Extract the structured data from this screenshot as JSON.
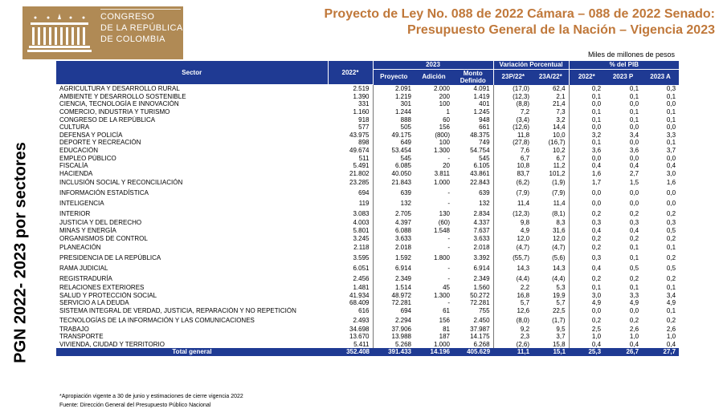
{
  "logo": {
    "name_lines": [
      "CONGRESO",
      "DE LA REPÚBLICA",
      "DE COLOMBIA"
    ]
  },
  "title": {
    "line1": "Proyecto de Ley No. 088 de 2022 Cámara – 088 de 2022 Senado:",
    "line2": "Presupuesto General de la Nación – Vigencia 2023"
  },
  "side_title": "PGN 2022- 2023 por sectores",
  "units": "Miles de millones de pesos",
  "table": {
    "h_sector": "Sector",
    "h_2022": "2022*",
    "h_2023": "2023",
    "h_proyecto": "Proyecto",
    "h_adicion": "Adición",
    "h_monto": "Monto Definido",
    "h_var": "Variación Porcentual",
    "h_var1": "23P/22*",
    "h_var2": "23A/22*",
    "h_pib": "% del PIB",
    "h_pib1": "2022*",
    "h_pib2": "2023 P",
    "h_pib3": "2023 A",
    "rows": [
      {
        "sector": "AGRICULTURA Y DESARROLLO RURAL",
        "v2022": "2.519",
        "proyecto": "2.091",
        "adicion": "2.000",
        "monto": "4.091",
        "var1": "(17,0)",
        "var2": "62,4",
        "pib1": "0,2",
        "pib2": "0,1",
        "pib3": "0,3"
      },
      {
        "sector": "AMBIENTE Y DESARROLLO SOSTENIBLE",
        "v2022": "1.390",
        "proyecto": "1.219",
        "adicion": "200",
        "monto": "1.419",
        "var1": "(12,3)",
        "var2": "2,1",
        "pib1": "0,1",
        "pib2": "0,1",
        "pib3": "0,1"
      },
      {
        "sector": "CIENCIA, TECNOLOGÍA E INNOVACIÓN",
        "v2022": "331",
        "proyecto": "301",
        "adicion": "100",
        "monto": "401",
        "var1": "(8,8)",
        "var2": "21,4",
        "pib1": "0,0",
        "pib2": "0,0",
        "pib3": "0,0"
      },
      {
        "sector": "COMERCIO, INDUSTRIA Y TURISMO",
        "v2022": "1.160",
        "proyecto": "1.244",
        "adicion": "1",
        "monto": "1.245",
        "var1": "7,2",
        "var2": "7,3",
        "pib1": "0,1",
        "pib2": "0,1",
        "pib3": "0,1"
      },
      {
        "sector": "CONGRESO DE LA REPÚBLICA",
        "v2022": "918",
        "proyecto": "888",
        "adicion": "60",
        "monto": "948",
        "var1": "(3,4)",
        "var2": "3,2",
        "pib1": "0,1",
        "pib2": "0,1",
        "pib3": "0,1"
      },
      {
        "sector": "CULTURA",
        "v2022": "577",
        "proyecto": "505",
        "adicion": "156",
        "monto": "661",
        "var1": "(12,6)",
        "var2": "14,4",
        "pib1": "0,0",
        "pib2": "0,0",
        "pib3": "0,0"
      },
      {
        "sector": "DEFENSA Y POLICÍA",
        "v2022": "43.975",
        "proyecto": "49.175",
        "adicion": "(800)",
        "monto": "48.375",
        "var1": "11,8",
        "var2": "10,0",
        "pib1": "3,2",
        "pib2": "3,4",
        "pib3": "3,3"
      },
      {
        "sector": "DEPORTE Y RECREACIÓN",
        "v2022": "898",
        "proyecto": "649",
        "adicion": "100",
        "monto": "749",
        "var1": "(27,8)",
        "var2": "(16,7)",
        "pib1": "0,1",
        "pib2": "0,0",
        "pib3": "0,1"
      },
      {
        "sector": "EDUCACIÓN",
        "v2022": "49.674",
        "proyecto": "53.454",
        "adicion": "1.300",
        "monto": "54.754",
        "var1": "7,6",
        "var2": "10,2",
        "pib1": "3,6",
        "pib2": "3,6",
        "pib3": "3,7"
      },
      {
        "sector": "EMPLEO PÚBLICO",
        "v2022": "511",
        "proyecto": "545",
        "adicion": "-",
        "monto": "545",
        "var1": "6,7",
        "var2": "6,7",
        "pib1": "0,0",
        "pib2": "0,0",
        "pib3": "0,0"
      },
      {
        "sector": "FISCALÍA",
        "v2022": "5.491",
        "proyecto": "6.085",
        "adicion": "20",
        "monto": "6.105",
        "var1": "10,8",
        "var2": "11,2",
        "pib1": "0,4",
        "pib2": "0,4",
        "pib3": "0,4"
      },
      {
        "sector": "HACIENDA",
        "v2022": "21.802",
        "proyecto": "40.050",
        "adicion": "3.811",
        "monto": "43.861",
        "var1": "83,7",
        "var2": "101,2",
        "pib1": "1,6",
        "pib2": "2,7",
        "pib3": "3,0"
      },
      {
        "sector": "INCLUSIÓN SOCIAL Y RECONCILIACIÓN",
        "v2022": "23.285",
        "proyecto": "21.843",
        "adicion": "1.000",
        "monto": "22.843",
        "var1": "(6,2)",
        "var2": "(1,9)",
        "pib1": "1,7",
        "pib2": "1,5",
        "pib3": "1,6",
        "tall": true
      },
      {
        "sector": "INFORMACIÓN ESTADÍSTICA",
        "v2022": "694",
        "proyecto": "639",
        "adicion": "-",
        "monto": "639",
        "var1": "(7,9)",
        "var2": "(7,9)",
        "pib1": "0,0",
        "pib2": "0,0",
        "pib3": "0,0",
        "tall": true
      },
      {
        "sector": "INTELIGENCIA",
        "v2022": "119",
        "proyecto": "132",
        "adicion": "-",
        "monto": "132",
        "var1": "11,4",
        "var2": "11,4",
        "pib1": "0,0",
        "pib2": "0,0",
        "pib3": "0,0",
        "tall": true
      },
      {
        "sector": "INTERIOR",
        "v2022": "3.083",
        "proyecto": "2.705",
        "adicion": "130",
        "monto": "2.834",
        "var1": "(12,3)",
        "var2": "(8,1)",
        "pib1": "0,2",
        "pib2": "0,2",
        "pib3": "0,2",
        "tall": true
      },
      {
        "sector": "JUSTICIA Y DEL DERECHO",
        "v2022": "4.003",
        "proyecto": "4.397",
        "adicion": "(60)",
        "monto": "4.337",
        "var1": "9,8",
        "var2": "8,3",
        "pib1": "0,3",
        "pib2": "0,3",
        "pib3": "0,3"
      },
      {
        "sector": "MINAS Y ENERGÍA",
        "v2022": "5.801",
        "proyecto": "6.088",
        "adicion": "1.548",
        "monto": "7.637",
        "var1": "4,9",
        "var2": "31,6",
        "pib1": "0,4",
        "pib2": "0,4",
        "pib3": "0,5"
      },
      {
        "sector": "ORGANISMOS DE CONTROL",
        "v2022": "3.245",
        "proyecto": "3.633",
        "adicion": "-",
        "monto": "3.633",
        "var1": "12,0",
        "var2": "12,0",
        "pib1": "0,2",
        "pib2": "0,2",
        "pib3": "0,2"
      },
      {
        "sector": "PLANEACIÓN",
        "v2022": "2.118",
        "proyecto": "2.018",
        "adicion": "-",
        "monto": "2.018",
        "var1": "(4,7)",
        "var2": "(4,7)",
        "pib1": "0,2",
        "pib2": "0,1",
        "pib3": "0,1",
        "tall": true
      },
      {
        "sector": "PRESIDENCIA DE LA REPÚBLICA",
        "v2022": "3.595",
        "proyecto": "1.592",
        "adicion": "1.800",
        "monto": "3.392",
        "var1": "(55,7)",
        "var2": "(5,6)",
        "pib1": "0,3",
        "pib2": "0,1",
        "pib3": "0,2",
        "tall": true
      },
      {
        "sector": "RAMA JUDICIAL",
        "v2022": "6.051",
        "proyecto": "6.914",
        "adicion": "-",
        "monto": "6.914",
        "var1": "14,3",
        "var2": "14,3",
        "pib1": "0,4",
        "pib2": "0,5",
        "pib3": "0,5",
        "tall": true
      },
      {
        "sector": "REGISTRADURÍA",
        "v2022": "2.456",
        "proyecto": "2.349",
        "adicion": "-",
        "monto": "2.349",
        "var1": "(4,4)",
        "var2": "(4,4)",
        "pib1": "0,2",
        "pib2": "0,2",
        "pib3": "0,2",
        "tall": true
      },
      {
        "sector": "RELACIONES EXTERIORES",
        "v2022": "1.481",
        "proyecto": "1.514",
        "adicion": "45",
        "monto": "1.560",
        "var1": "2,2",
        "var2": "5,3",
        "pib1": "0,1",
        "pib2": "0,1",
        "pib3": "0,1"
      },
      {
        "sector": "SALUD Y PROTECCIÓN SOCIAL",
        "v2022": "41.934",
        "proyecto": "48.972",
        "adicion": "1.300",
        "monto": "50.272",
        "var1": "16,8",
        "var2": "19,9",
        "pib1": "3,0",
        "pib2": "3,3",
        "pib3": "3,4"
      },
      {
        "sector": "SERVICIO A LA DEUDA",
        "v2022": "68.409",
        "proyecto": "72.281",
        "adicion": "-",
        "monto": "72.281",
        "var1": "5,7",
        "var2": "5,7",
        "pib1": "4,9",
        "pib2": "4,9",
        "pib3": "4,9"
      },
      {
        "sector": "SISTEMA INTEGRAL DE VERDAD, JUSTICIA, REPARACIÓN Y NO REPETICIÓN",
        "v2022": "616",
        "proyecto": "694",
        "adicion": "61",
        "monto": "755",
        "var1": "12,6",
        "var2": "22,5",
        "pib1": "0,0",
        "pib2": "0,0",
        "pib3": "0,1"
      },
      {
        "sector": "TECNOLOGÍAS DE LA INFORMACIÓN Y LAS COMUNICACIONES",
        "v2022": "2.493",
        "proyecto": "2.294",
        "adicion": "156",
        "monto": "2.450",
        "var1": "(8,0)",
        "var2": "(1,7)",
        "pib1": "0,2",
        "pib2": "0,2",
        "pib3": "0,2",
        "tall": true
      },
      {
        "sector": "TRABAJO",
        "v2022": "34.698",
        "proyecto": "37.906",
        "adicion": "81",
        "monto": "37.987",
        "var1": "9,2",
        "var2": "9,5",
        "pib1": "2,5",
        "pib2": "2,6",
        "pib3": "2,6"
      },
      {
        "sector": "TRANSPORTE",
        "v2022": "13.670",
        "proyecto": "13.988",
        "adicion": "187",
        "monto": "14.175",
        "var1": "2,3",
        "var2": "3,7",
        "pib1": "1,0",
        "pib2": "1,0",
        "pib3": "1,0"
      },
      {
        "sector": "VIVIENDA, CIUDAD Y TERRITORIO",
        "v2022": "5.411",
        "proyecto": "5.268",
        "adicion": "1.000",
        "monto": "6.268",
        "var1": "(2,6)",
        "var2": "15,8",
        "pib1": "0,4",
        "pib2": "0,4",
        "pib3": "0,4"
      }
    ],
    "total": {
      "label": "Total general",
      "v2022": "352.408",
      "proyecto": "391.433",
      "adicion": "14.196",
      "monto": "405.629",
      "var1": "11,1",
      "var2": "15,1",
      "pib1": "25,3",
      "pib2": "26,7",
      "pib3": "27,7"
    }
  },
  "notes": [
    "*Apropiación vigente a 30 de junio y estimaciones de cierre vigencia 2022",
    "Fuente: Dirección General del Presupuesto Público Nacional"
  ],
  "colors": {
    "header_blue": "#1f3a93",
    "title_orange": "#c0783a",
    "logo_gold": "#b08a55"
  }
}
